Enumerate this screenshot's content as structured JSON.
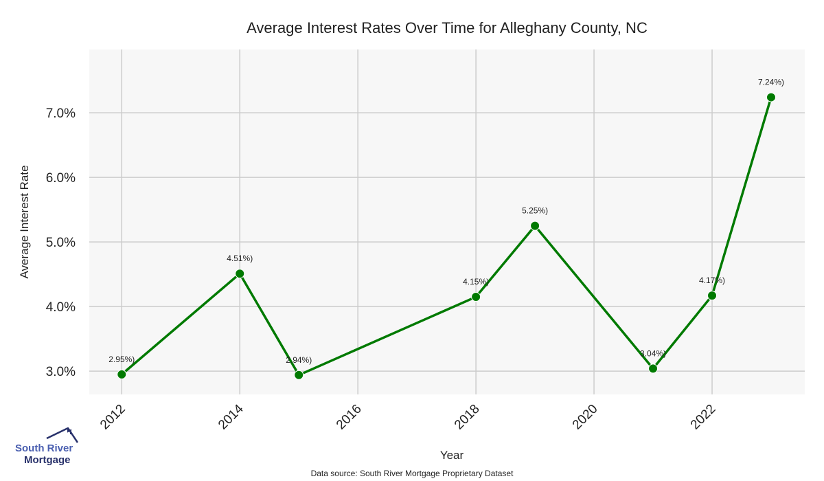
{
  "chart_data": {
    "type": "line",
    "title": "Average Interest Rates Over Time for Alleghany County, NC",
    "xlabel": "Year",
    "ylabel": "Average Interest Rate",
    "x": [
      2012,
      2014,
      2015,
      2018,
      2019,
      2021,
      2022,
      2023
    ],
    "values": [
      2.95,
      4.51,
      2.94,
      4.15,
      5.25,
      3.04,
      4.17,
      7.24
    ],
    "data_labels": [
      "2.95%)",
      "4.51%)",
      "2.94%)",
      "4.15%)",
      "5.25%)",
      "3.04%)",
      "4.17%)",
      "7.24%)"
    ],
    "xticks": [
      "2012",
      "2014",
      "2016",
      "2018",
      "2020",
      "2022"
    ],
    "xtick_values": [
      2012,
      2014,
      2016,
      2018,
      2020,
      2022
    ],
    "yticks": [
      "3.0%",
      "4.0%",
      "5.0%",
      "6.0%",
      "7.0%"
    ],
    "ytick_values": [
      3,
      4,
      5,
      6,
      7
    ],
    "xlim": [
      2011.45,
      2023.57
    ],
    "ylim": [
      2.64,
      7.98
    ],
    "grid": true,
    "line_color": "#007a00",
    "source": "Data source: South River Mortgage Proprietary Dataset"
  },
  "logo": {
    "line1": "South River",
    "line2": "Mortgage"
  }
}
